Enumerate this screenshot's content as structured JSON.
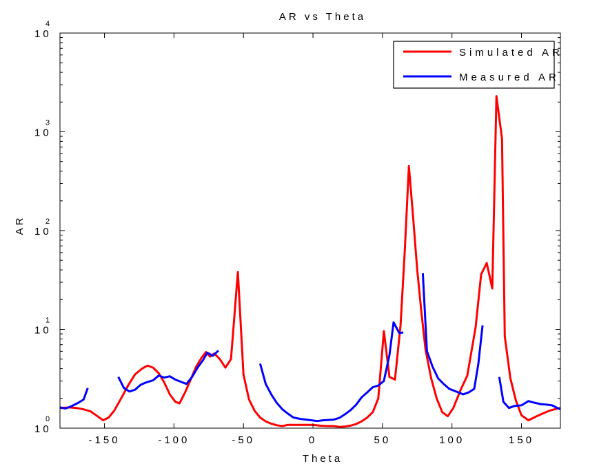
{
  "chart_data": {
    "type": "line",
    "title": "AR vs Theta",
    "xlabel": "Theta",
    "ylabel": "AR",
    "xlim": [
      -182,
      178
    ],
    "ylim": [
      1,
      10000
    ],
    "yscale": "log",
    "grid": false,
    "legend_position": "top-right",
    "x_ticks": [
      -150,
      -100,
      -50,
      0,
      50,
      100,
      150
    ],
    "y_ticks": [
      {
        "base": "10",
        "exp": "0",
        "value": 1
      },
      {
        "base": "10",
        "exp": "1",
        "value": 10
      },
      {
        "base": "10",
        "exp": "2",
        "value": 100
      },
      {
        "base": "10",
        "exp": "3",
        "value": 1000
      },
      {
        "base": "10",
        "exp": "4",
        "value": 10000
      }
    ],
    "series": [
      {
        "name": "Simulated AR",
        "color": "#ff0000",
        "segments": [
          [
            [
              -182,
              1.6
            ],
            [
              -175,
              1.62
            ],
            [
              -170,
              1.6
            ],
            [
              -165,
              1.55
            ],
            [
              -160,
              1.48
            ],
            [
              -155,
              1.32
            ],
            [
              -151,
              1.2
            ],
            [
              -147,
              1.28
            ],
            [
              -143,
              1.5
            ],
            [
              -138,
              2.0
            ],
            [
              -133,
              2.7
            ],
            [
              -128,
              3.5
            ],
            [
              -123,
              4.0
            ],
            [
              -119,
              4.3
            ],
            [
              -115,
              4.1
            ],
            [
              -111,
              3.6
            ],
            [
              -107,
              2.9
            ],
            [
              -103,
              2.2
            ],
            [
              -99,
              1.85
            ],
            [
              -96,
              1.78
            ],
            [
              -92,
              2.3
            ],
            [
              -88,
              3.1
            ],
            [
              -84,
              4.2
            ],
            [
              -80,
              5.2
            ],
            [
              -77,
              5.9
            ],
            [
              -74,
              5.3
            ],
            [
              -71,
              5.7
            ],
            [
              -67,
              5.0
            ],
            [
              -63,
              4.1
            ],
            [
              -59,
              5.0
            ],
            [
              -54,
              38
            ],
            [
              -50,
              3.5
            ],
            [
              -46,
              1.95
            ],
            [
              -42,
              1.5
            ],
            [
              -38,
              1.28
            ],
            [
              -34,
              1.17
            ],
            [
              -30,
              1.11
            ],
            [
              -26,
              1.07
            ],
            [
              -22,
              1.05
            ],
            [
              -18,
              1.08
            ],
            [
              -10,
              1.08
            ],
            [
              0,
              1.08
            ],
            [
              5,
              1.06
            ],
            [
              10,
              1.05
            ],
            [
              15,
              1.05
            ],
            [
              19,
              1.03
            ],
            [
              23,
              1.04
            ],
            [
              27,
              1.06
            ],
            [
              31,
              1.1
            ],
            [
              35,
              1.17
            ],
            [
              39,
              1.28
            ],
            [
              43,
              1.45
            ],
            [
              47,
              2.0
            ],
            [
              51,
              9.6
            ],
            [
              55,
              3.3
            ],
            [
              59,
              3.1
            ],
            [
              63,
              11
            ],
            [
              66,
              60
            ],
            [
              69,
              450
            ],
            [
              72,
              140
            ],
            [
              75,
              40
            ],
            [
              78,
              15
            ],
            [
              81,
              6.2
            ],
            [
              85,
              3.2
            ],
            [
              89,
              2.0
            ],
            [
              93,
              1.45
            ],
            [
              97,
              1.32
            ],
            [
              101,
              1.6
            ],
            [
              106,
              2.4
            ],
            [
              111,
              3.4
            ],
            [
              117,
              10.5
            ],
            [
              121,
              36
            ],
            [
              125,
              47
            ],
            [
              129,
              26
            ],
            [
              132,
              2300
            ],
            [
              136,
              850
            ],
            [
              138,
              8.5
            ],
            [
              142,
              3.2
            ],
            [
              146,
              1.9
            ],
            [
              150,
              1.35
            ],
            [
              155,
              1.2
            ],
            [
              160,
              1.3
            ],
            [
              165,
              1.4
            ],
            [
              170,
              1.5
            ],
            [
              175,
              1.57
            ],
            [
              178,
              1.6
            ]
          ]
        ]
      },
      {
        "name": "Measured AR",
        "color": "#0000ff",
        "segments": [
          [
            [
              -182,
              1.62
            ],
            [
              -178,
              1.58
            ],
            [
              -174,
              1.66
            ],
            [
              -169,
              1.8
            ],
            [
              -165,
              1.95
            ],
            [
              -162,
              2.55
            ]
          ],
          [
            [
              -140,
              3.3
            ],
            [
              -136,
              2.55
            ],
            [
              -132,
              2.35
            ],
            [
              -128,
              2.45
            ],
            [
              -124,
              2.75
            ],
            [
              -120,
              2.9
            ],
            [
              -115,
              3.05
            ],
            [
              -111,
              3.4
            ],
            [
              -107,
              3.25
            ],
            [
              -103,
              3.35
            ],
            [
              -99,
              3.1
            ],
            [
              -95,
              2.95
            ],
            [
              -91,
              2.8
            ],
            [
              -87,
              3.3
            ],
            [
              -83,
              4.1
            ],
            [
              -79,
              4.9
            ],
            [
              -76,
              5.8
            ],
            [
              -72,
              5.4
            ],
            [
              -68,
              6.1
            ]
          ],
          [
            [
              -38,
              4.5
            ],
            [
              -34,
              2.8
            ],
            [
              -30,
              2.2
            ],
            [
              -26,
              1.8
            ],
            [
              -22,
              1.55
            ],
            [
              -18,
              1.4
            ],
            [
              -14,
              1.28
            ],
            [
              -9,
              1.24
            ],
            [
              -5,
              1.22
            ],
            [
              -1,
              1.2
            ],
            [
              3,
              1.18
            ],
            [
              7,
              1.2
            ],
            [
              11,
              1.21
            ],
            [
              15,
              1.22
            ],
            [
              19,
              1.27
            ],
            [
              23,
              1.38
            ],
            [
              27,
              1.52
            ],
            [
              31,
              1.72
            ],
            [
              35,
              2.05
            ],
            [
              39,
              2.3
            ],
            [
              43,
              2.6
            ],
            [
              47,
              2.7
            ],
            [
              51,
              3.0
            ],
            [
              55,
              5.5
            ],
            [
              58,
              11.8
            ],
            [
              62,
              9.2
            ],
            [
              65,
              9.3
            ]
          ],
          [
            [
              79,
              37
            ],
            [
              82,
              6.0
            ],
            [
              86,
              4.2
            ],
            [
              90,
              3.2
            ],
            [
              94,
              2.8
            ],
            [
              98,
              2.5
            ],
            [
              103,
              2.35
            ],
            [
              108,
              2.2
            ],
            [
              112,
              2.3
            ],
            [
              116,
              2.5
            ],
            [
              119,
              4.5
            ],
            [
              122,
              11
            ]
          ],
          [
            [
              134,
              3.3
            ],
            [
              137,
              1.85
            ],
            [
              141,
              1.6
            ],
            [
              145,
              1.68
            ],
            [
              150,
              1.7
            ],
            [
              155,
              1.88
            ],
            [
              160,
              1.8
            ],
            [
              164,
              1.75
            ],
            [
              168,
              1.73
            ],
            [
              172,
              1.7
            ],
            [
              175,
              1.62
            ],
            [
              178,
              1.55
            ]
          ]
        ]
      }
    ]
  }
}
